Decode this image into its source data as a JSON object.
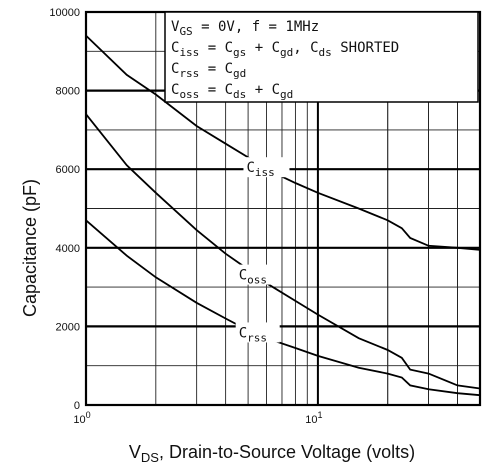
{
  "chart_data": {
    "type": "line",
    "x_scale": "log",
    "xlim": [
      1,
      50
    ],
    "ylim": [
      0,
      10000
    ],
    "grid": true,
    "ylabel": "Capacitance (pF)",
    "xlabel": {
      "main": "V",
      "sub": "DS",
      "rest": ", Drain-to-Source Voltage (volts)"
    },
    "y_ticks": [
      0,
      2000,
      4000,
      6000,
      8000,
      10000
    ],
    "y_tick_labels": [
      "0",
      "2000",
      "4000",
      "6000",
      "8000",
      "10000"
    ],
    "x_ticks": [
      {
        "value": 1,
        "base": "10",
        "exp": "0"
      },
      {
        "value": 10,
        "base": "10",
        "exp": "1"
      }
    ],
    "legend": [
      {
        "parts": [
          [
            "V",
            false
          ],
          [
            "GS",
            true
          ],
          [
            " = 0V,  f = 1MHz",
            false
          ]
        ]
      },
      {
        "parts": [
          [
            "C",
            false
          ],
          [
            "iss",
            true
          ],
          [
            " = C",
            false
          ],
          [
            "gs",
            true
          ],
          [
            " + C",
            false
          ],
          [
            "gd",
            true
          ],
          [
            ",  C",
            false
          ],
          [
            "ds",
            true
          ],
          [
            " SHORTED",
            false
          ]
        ]
      },
      {
        "parts": [
          [
            "C",
            false
          ],
          [
            "rss",
            true
          ],
          [
            " = C",
            false
          ],
          [
            "gd",
            true
          ]
        ]
      },
      {
        "parts": [
          [
            "C",
            false
          ],
          [
            "oss",
            true
          ],
          [
            " = C",
            false
          ],
          [
            "ds",
            true
          ],
          [
            " + C",
            false
          ],
          [
            "gd",
            true
          ]
        ]
      }
    ],
    "series": [
      {
        "name": "Ciss",
        "label_main": "C",
        "label_sub": "iss",
        "x": [
          1,
          1.5,
          2,
          3,
          4,
          5,
          6,
          8,
          10,
          15,
          20,
          23,
          25,
          30,
          40,
          50
        ],
        "y": [
          9400,
          8400,
          7900,
          7100,
          6650,
          6300,
          6000,
          5650,
          5400,
          5000,
          4700,
          4500,
          4250,
          4050,
          4000,
          3950
        ]
      },
      {
        "name": "Coss",
        "label_main": "C",
        "label_sub": "oss",
        "x": [
          1,
          1.5,
          2,
          3,
          4,
          5,
          6,
          8,
          10,
          15,
          20,
          23,
          25,
          30,
          40,
          50
        ],
        "y": [
          7400,
          6100,
          5400,
          4450,
          3850,
          3450,
          3100,
          2650,
          2300,
          1700,
          1400,
          1200,
          900,
          800,
          500,
          420
        ]
      },
      {
        "name": "Crss",
        "label_main": "C",
        "label_sub": "rss",
        "x": [
          1,
          1.5,
          2,
          3,
          4,
          5,
          6,
          8,
          10,
          15,
          20,
          23,
          25,
          30,
          40,
          50
        ],
        "y": [
          4700,
          3800,
          3250,
          2600,
          2200,
          1900,
          1700,
          1450,
          1250,
          950,
          800,
          700,
          500,
          400,
          300,
          250
        ]
      }
    ]
  }
}
